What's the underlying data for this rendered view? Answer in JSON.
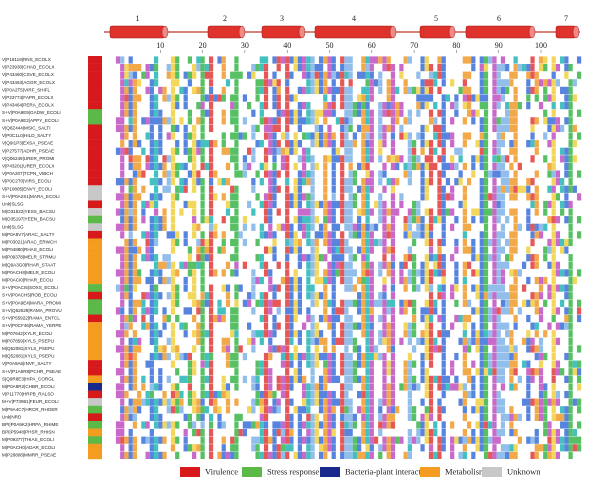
{
  "header": {
    "helices": [
      "1",
      "2",
      "3",
      "4",
      "5",
      "6",
      "7"
    ],
    "ruler": [
      10,
      20,
      30,
      40,
      50,
      60,
      70,
      80,
      90,
      100
    ]
  },
  "sequences": [
    {
      "label": "V|P16118|RNS_ECOLX",
      "group": 0
    },
    {
      "label": "V|P23930|CHAD_ECOLX",
      "group": 0
    },
    {
      "label": "V|P43460|CSVE_ECOLX",
      "group": 0
    },
    {
      "label": "V|P43463|AGGR_ECOLX",
      "group": 0
    },
    {
      "label": "V|P0A2T5|VIRF_SHIFL",
      "group": 0
    },
    {
      "label": "V|P23774|FAPR_ECOLX",
      "group": 0
    },
    {
      "label": "V|P43464|PERA_ECOLX",
      "group": 0
    },
    {
      "label": "S+V|P0A9E9|GADW_ECOLI",
      "group": 1
    },
    {
      "label": "S+V|P0A9E2|APPY_ECOLI",
      "group": 1
    },
    {
      "label": "V|Q8Z444|MSIC_SALTI",
      "group": 0
    },
    {
      "label": "V|P0C1L0|HILD_SALTY",
      "group": 0
    },
    {
      "label": "V|Q9I1P3|EXSA_PSEAE",
      "group": 0
    },
    {
      "label": "V|P27577|ADHR_PSEAE",
      "group": 0
    },
    {
      "label": "V|Q06249|URER_PROMI",
      "group": 0
    },
    {
      "label": "V|P43201|URER_ECOLX",
      "group": 0
    },
    {
      "label": "V|P0A207|TCPN_VIBCH",
      "group": 0
    },
    {
      "label": "V|P0C2T0|VIRS_ECOLI",
      "group": 0
    },
    {
      "label": "V|P10805|ENVY_ECOLI",
      "group": 4
    },
    {
      "label": "S+V|P0A2S1|MARA_ECOLI",
      "group": 4
    },
    {
      "label": "Unk|SLSG",
      "group": 0
    },
    {
      "label": "M|O31522|YESS_BACSU",
      "group": 4
    },
    {
      "label": "M|O35197|YEEN_BACSU",
      "group": 1
    },
    {
      "label": "Unk|SLSG",
      "group": 4
    },
    {
      "label": "M|P0A8V7|ARAC_SALTY",
      "group": 0
    },
    {
      "label": "M|P03021|ARAC_ERWCH",
      "group": 3
    },
    {
      "label": "M|P04880|RHAS_ECOLI",
      "group": 3
    },
    {
      "label": "M|P09378|MELR_STRMU",
      "group": 3
    },
    {
      "label": "M|Q9A3G0|RHAR_STAAT",
      "group": 3
    },
    {
      "label": "M|P0ACH8|MELR_ECOLI",
      "group": 3
    },
    {
      "label": "M|P0ACI0|RHAR_ECOLI",
      "group": 3
    },
    {
      "label": "S+V|P0ACI5|SOXS_ECOLI",
      "group": 1
    },
    {
      "label": "S+V|P0ACH5|ROB_ECOLI",
      "group": 0
    },
    {
      "label": "S+V|P0A9E4|MARA_PROMI",
      "group": 1
    },
    {
      "label": "S+V|Q52629|RAMA_PROVU",
      "group": 1
    },
    {
      "label": "S+V|P55922|RAMA_ENTCL",
      "group": 0
    },
    {
      "label": "S+V|P0CF46|RAMA_YERPE",
      "group": 3
    },
    {
      "label": "M|P07642|XYLR_ECOLI",
      "group": 3
    },
    {
      "label": "M|P07859|XYLS_PSEPU",
      "group": 3
    },
    {
      "label": "M|Q52081|XYLS_PSEPU",
      "group": 3
    },
    {
      "label": "M|Q52081|XYLS_PSEPU",
      "group": 3
    },
    {
      "label": "V|P0A9A6|INVF_SALTY",
      "group": 0
    },
    {
      "label": "S+V|P1A6R8|PCHR_PSEAE",
      "group": 0
    },
    {
      "label": "S|Q9R8E3|HIPA_CORGL",
      "group": 3
    },
    {
      "label": "M|P0A8R2|CHBR_ECOLI",
      "group": 2
    },
    {
      "label": "V|P11770|HRPB_RALSO",
      "group": 0
    },
    {
      "label": "M+V|P73981|FEUR_ECOLI",
      "group": 4
    },
    {
      "label": "M|P9A4C7|HRCR_RHOER",
      "group": 1
    },
    {
      "label": "Unk|NRD",
      "group": 0
    },
    {
      "label": "BPI|P0A9K2|HRPA_RHIME",
      "group": 1
    },
    {
      "label": "BPI|P5948|PHSR_RHISN",
      "group": 3
    },
    {
      "label": "M|P09377|THIAS_ECOLI",
      "group": 1
    },
    {
      "label": "M|P0ACH0|ADAR_ECOLI",
      "group": 3
    },
    {
      "label": "M|P28808|MMRR_PSEAE",
      "group": 3
    }
  ],
  "legend": [
    {
      "label": "Virulence",
      "color": "#d7191c"
    },
    {
      "label": "Stress response",
      "color": "#5bb947"
    },
    {
      "label": "Bacteria-plant interaction",
      "color": "#1a2a8c"
    },
    {
      "label": "Metabolism",
      "color": "#f39c1f"
    },
    {
      "label": "Unknown",
      "color": "#c8c8c8"
    }
  ]
}
